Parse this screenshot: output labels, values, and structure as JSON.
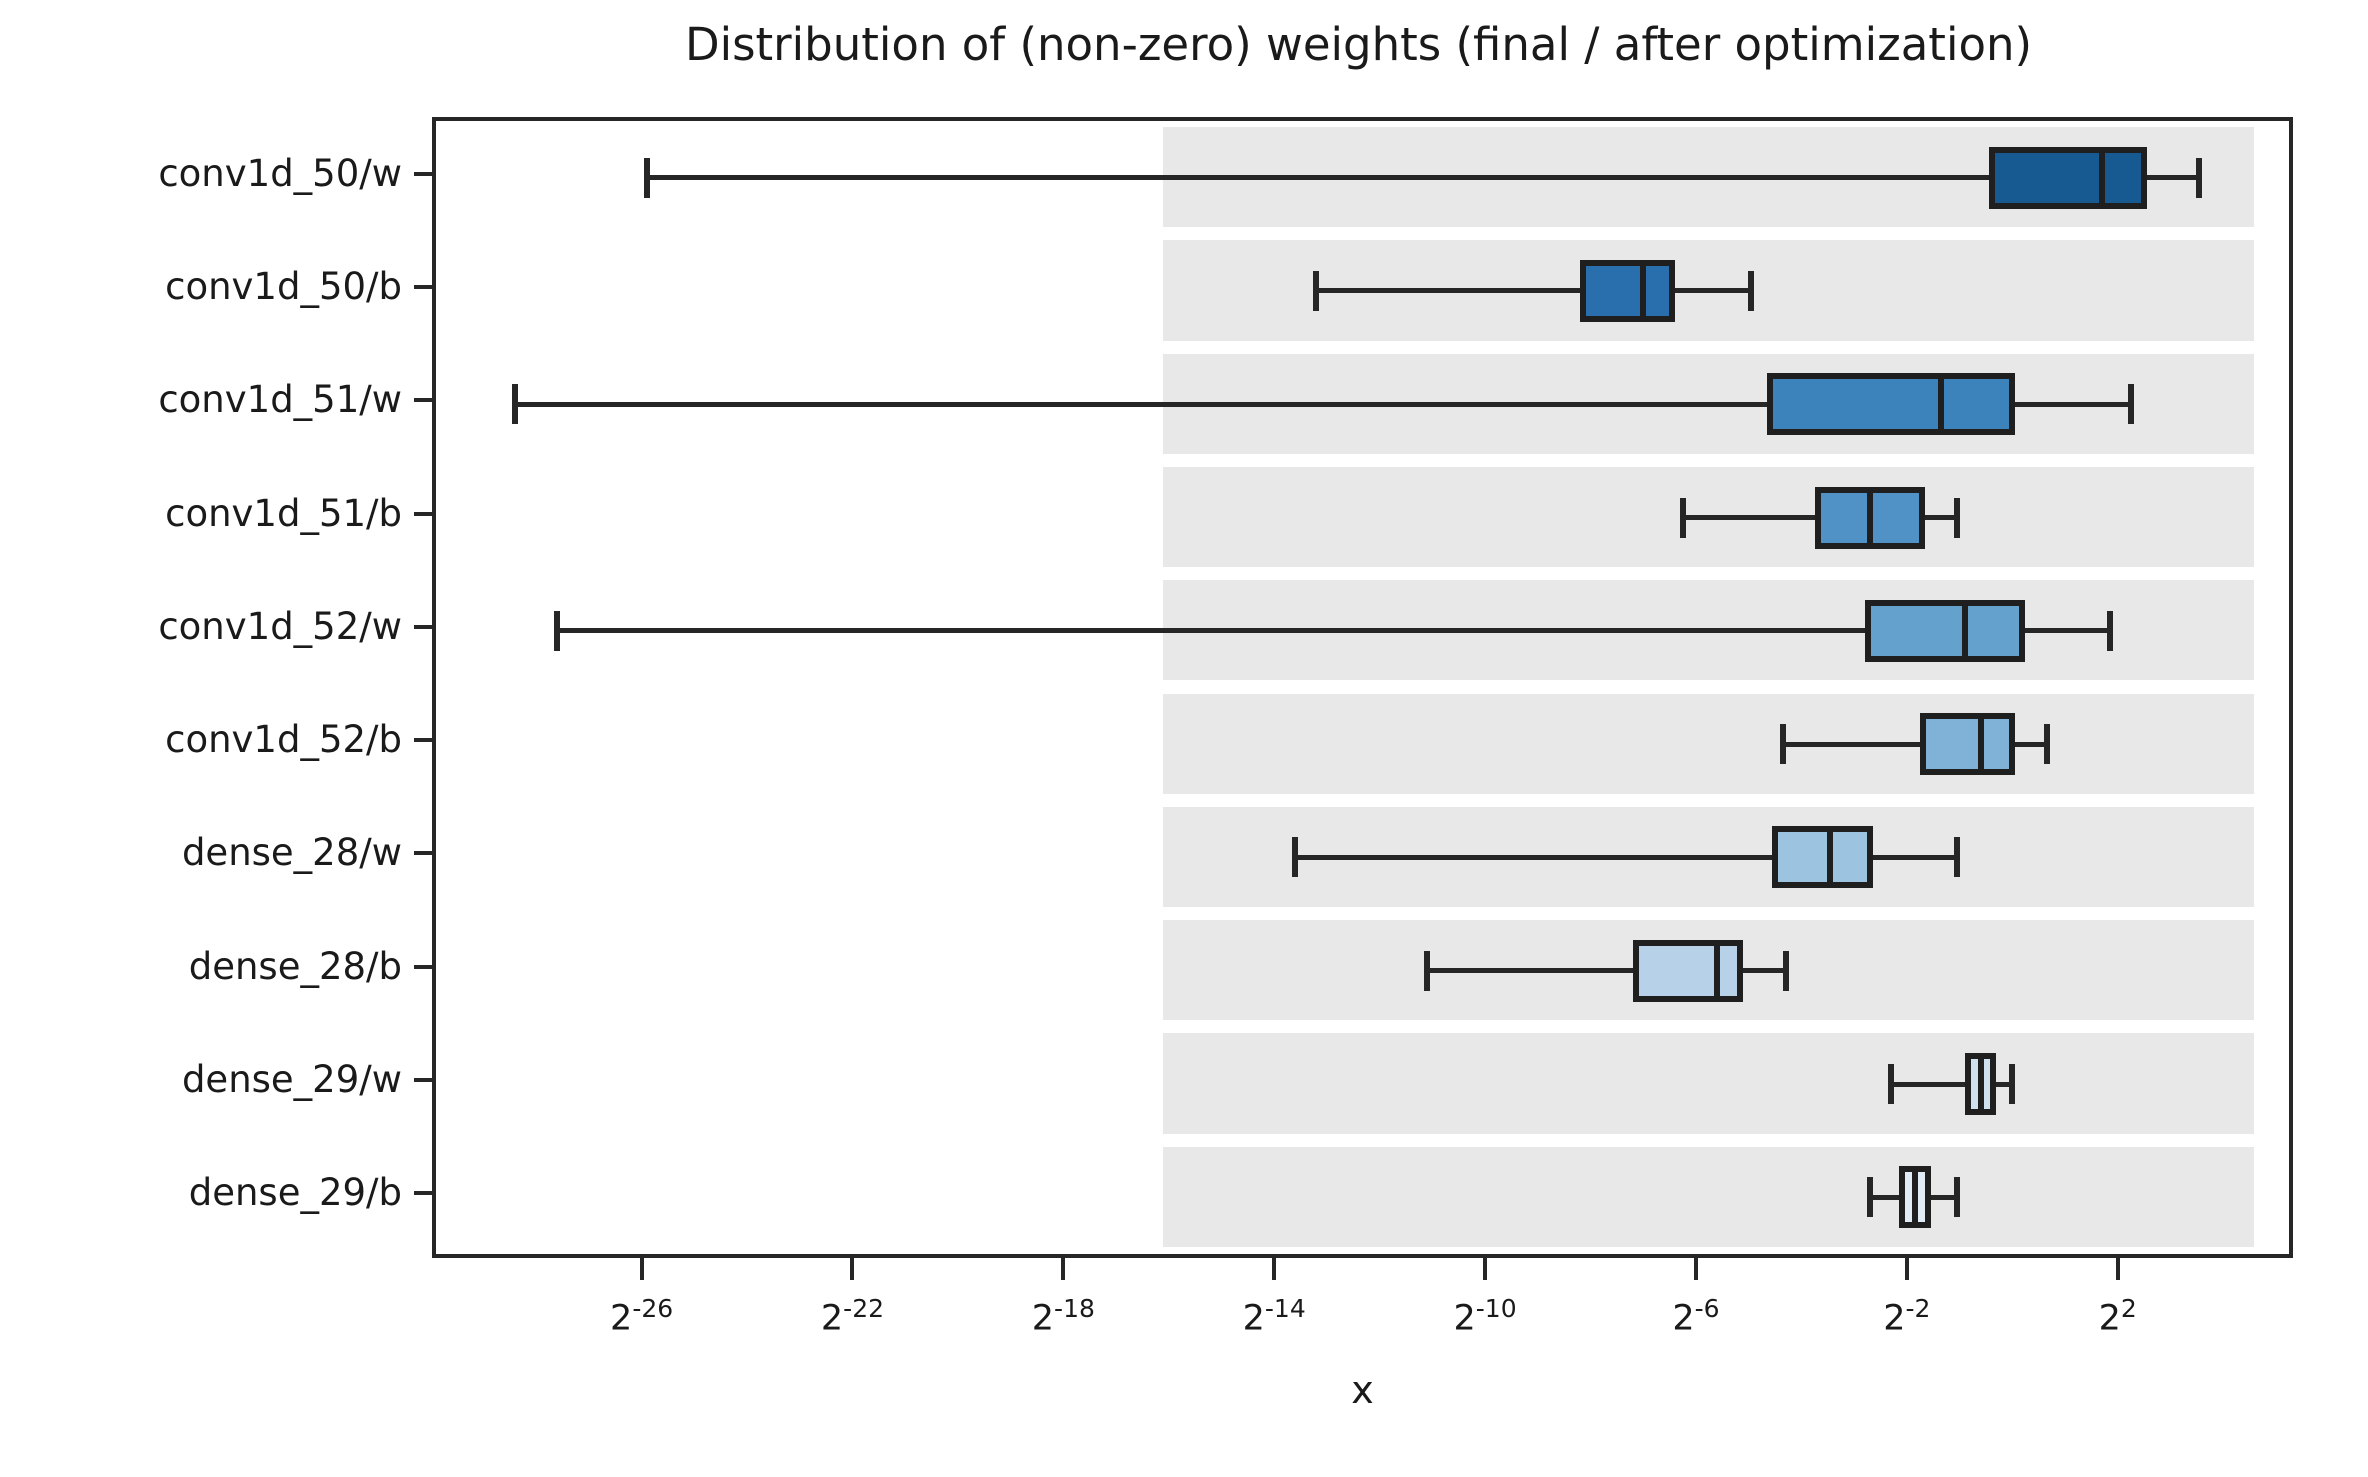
{
  "title": "Distribution of (non-zero) weights (final / after optimization)",
  "colors": {
    "highlight_band": "#e8e8e8",
    "line": "#262626",
    "box_edge": "#1f1f1f",
    "frame": "#262626",
    "text": "#1a1a1a"
  },
  "chart_data": {
    "type": "boxplot",
    "orientation": "horizontal",
    "title": "Distribution of (non-zero) weights (final / after optimization)",
    "xlabel": "x",
    "ylabel": "",
    "x_scale": "log2",
    "x_tick_base": "2",
    "x_axis_exponent_range": [
      -29.9,
      5.25
    ],
    "x_ticks_exponents": [
      -26,
      -22,
      -18,
      -14,
      -10,
      -6,
      -2,
      2
    ],
    "grid": false,
    "highlight_band_exponents": [
      -16.1,
      4.58
    ],
    "categories": [
      "conv1d_50/w",
      "conv1d_50/b",
      "conv1d_51/w",
      "conv1d_51/b",
      "conv1d_52/w",
      "conv1d_52/b",
      "dense_28/w",
      "dense_28/b",
      "dense_29/w",
      "dense_29/b"
    ],
    "series": [
      {
        "label": "conv1d_50/w",
        "whislo_exp": -25.9,
        "q1_exp": -0.45,
        "med_exp": 1.7,
        "q3_exp": 2.55,
        "whishi_exp": 3.55,
        "color": "#175a92"
      },
      {
        "label": "conv1d_50/b",
        "whislo_exp": -13.2,
        "q1_exp": -8.2,
        "med_exp": -7.0,
        "q3_exp": -6.4,
        "whishi_exp": -4.95,
        "color": "#2a6fad"
      },
      {
        "label": "conv1d_51/w",
        "whislo_exp": -28.4,
        "q1_exp": -4.65,
        "med_exp": -1.35,
        "q3_exp": 0.05,
        "whishi_exp": 2.25,
        "color": "#3d83bb"
      },
      {
        "label": "conv1d_51/b",
        "whislo_exp": -6.25,
        "q1_exp": -3.75,
        "med_exp": -2.7,
        "q3_exp": -1.65,
        "whishi_exp": -1.05,
        "color": "#5092c5"
      },
      {
        "label": "conv1d_52/w",
        "whislo_exp": -27.6,
        "q1_exp": -2.8,
        "med_exp": -0.9,
        "q3_exp": 0.25,
        "whishi_exp": 1.85,
        "color": "#65a1cd"
      },
      {
        "label": "conv1d_52/b",
        "whislo_exp": -4.35,
        "q1_exp": -1.75,
        "med_exp": -0.6,
        "q3_exp": 0.05,
        "whishi_exp": 0.65,
        "color": "#7fb2d6"
      },
      {
        "label": "dense_28/w",
        "whislo_exp": -13.6,
        "q1_exp": -4.55,
        "med_exp": -3.45,
        "q3_exp": -2.65,
        "whishi_exp": -1.05,
        "color": "#9cc3e0"
      },
      {
        "label": "dense_28/b",
        "whislo_exp": -11.1,
        "q1_exp": -7.2,
        "med_exp": -5.6,
        "q3_exp": -5.1,
        "whishi_exp": -4.3,
        "color": "#b7d2e8"
      },
      {
        "label": "dense_29/w",
        "whislo_exp": -2.3,
        "q1_exp": -0.9,
        "med_exp": -0.6,
        "q3_exp": -0.3,
        "whishi_exp": 0.0,
        "color": "#cfe0ef"
      },
      {
        "label": "dense_29/b",
        "whislo_exp": -2.7,
        "q1_exp": -2.15,
        "med_exp": -1.85,
        "q3_exp": -1.55,
        "whishi_exp": -1.05,
        "color": "#e2ecf6"
      }
    ]
  }
}
